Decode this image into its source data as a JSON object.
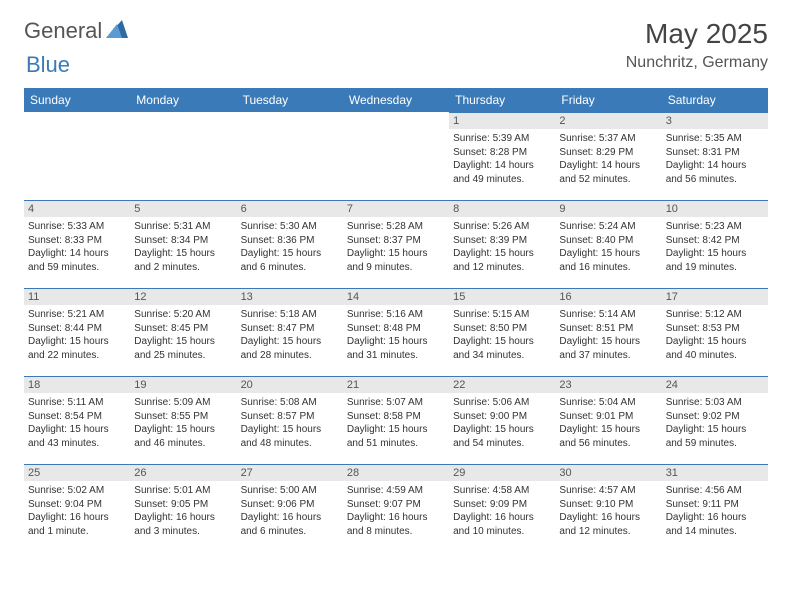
{
  "logo": {
    "word1": "General",
    "word2": "Blue"
  },
  "header": {
    "month": "May 2025",
    "location": "Nunchritz, Germany"
  },
  "colors": {
    "accent": "#3a7ab8",
    "daybar": "#e8e8e8",
    "text": "#333333",
    "bg": "#ffffff"
  },
  "typography": {
    "body_pt": 10,
    "header_pt": 28,
    "dayheader_pt": 12
  },
  "calendar": {
    "type": "table",
    "columns": [
      "Sunday",
      "Monday",
      "Tuesday",
      "Wednesday",
      "Thursday",
      "Friday",
      "Saturday"
    ],
    "weeks": [
      [
        null,
        null,
        null,
        null,
        {
          "n": "1",
          "sunrise": "Sunrise: 5:39 AM",
          "sunset": "Sunset: 8:28 PM",
          "daylight": "Daylight: 14 hours and 49 minutes."
        },
        {
          "n": "2",
          "sunrise": "Sunrise: 5:37 AM",
          "sunset": "Sunset: 8:29 PM",
          "daylight": "Daylight: 14 hours and 52 minutes."
        },
        {
          "n": "3",
          "sunrise": "Sunrise: 5:35 AM",
          "sunset": "Sunset: 8:31 PM",
          "daylight": "Daylight: 14 hours and 56 minutes."
        }
      ],
      [
        {
          "n": "4",
          "sunrise": "Sunrise: 5:33 AM",
          "sunset": "Sunset: 8:33 PM",
          "daylight": "Daylight: 14 hours and 59 minutes."
        },
        {
          "n": "5",
          "sunrise": "Sunrise: 5:31 AM",
          "sunset": "Sunset: 8:34 PM",
          "daylight": "Daylight: 15 hours and 2 minutes."
        },
        {
          "n": "6",
          "sunrise": "Sunrise: 5:30 AM",
          "sunset": "Sunset: 8:36 PM",
          "daylight": "Daylight: 15 hours and 6 minutes."
        },
        {
          "n": "7",
          "sunrise": "Sunrise: 5:28 AM",
          "sunset": "Sunset: 8:37 PM",
          "daylight": "Daylight: 15 hours and 9 minutes."
        },
        {
          "n": "8",
          "sunrise": "Sunrise: 5:26 AM",
          "sunset": "Sunset: 8:39 PM",
          "daylight": "Daylight: 15 hours and 12 minutes."
        },
        {
          "n": "9",
          "sunrise": "Sunrise: 5:24 AM",
          "sunset": "Sunset: 8:40 PM",
          "daylight": "Daylight: 15 hours and 16 minutes."
        },
        {
          "n": "10",
          "sunrise": "Sunrise: 5:23 AM",
          "sunset": "Sunset: 8:42 PM",
          "daylight": "Daylight: 15 hours and 19 minutes."
        }
      ],
      [
        {
          "n": "11",
          "sunrise": "Sunrise: 5:21 AM",
          "sunset": "Sunset: 8:44 PM",
          "daylight": "Daylight: 15 hours and 22 minutes."
        },
        {
          "n": "12",
          "sunrise": "Sunrise: 5:20 AM",
          "sunset": "Sunset: 8:45 PM",
          "daylight": "Daylight: 15 hours and 25 minutes."
        },
        {
          "n": "13",
          "sunrise": "Sunrise: 5:18 AM",
          "sunset": "Sunset: 8:47 PM",
          "daylight": "Daylight: 15 hours and 28 minutes."
        },
        {
          "n": "14",
          "sunrise": "Sunrise: 5:16 AM",
          "sunset": "Sunset: 8:48 PM",
          "daylight": "Daylight: 15 hours and 31 minutes."
        },
        {
          "n": "15",
          "sunrise": "Sunrise: 5:15 AM",
          "sunset": "Sunset: 8:50 PM",
          "daylight": "Daylight: 15 hours and 34 minutes."
        },
        {
          "n": "16",
          "sunrise": "Sunrise: 5:14 AM",
          "sunset": "Sunset: 8:51 PM",
          "daylight": "Daylight: 15 hours and 37 minutes."
        },
        {
          "n": "17",
          "sunrise": "Sunrise: 5:12 AM",
          "sunset": "Sunset: 8:53 PM",
          "daylight": "Daylight: 15 hours and 40 minutes."
        }
      ],
      [
        {
          "n": "18",
          "sunrise": "Sunrise: 5:11 AM",
          "sunset": "Sunset: 8:54 PM",
          "daylight": "Daylight: 15 hours and 43 minutes."
        },
        {
          "n": "19",
          "sunrise": "Sunrise: 5:09 AM",
          "sunset": "Sunset: 8:55 PM",
          "daylight": "Daylight: 15 hours and 46 minutes."
        },
        {
          "n": "20",
          "sunrise": "Sunrise: 5:08 AM",
          "sunset": "Sunset: 8:57 PM",
          "daylight": "Daylight: 15 hours and 48 minutes."
        },
        {
          "n": "21",
          "sunrise": "Sunrise: 5:07 AM",
          "sunset": "Sunset: 8:58 PM",
          "daylight": "Daylight: 15 hours and 51 minutes."
        },
        {
          "n": "22",
          "sunrise": "Sunrise: 5:06 AM",
          "sunset": "Sunset: 9:00 PM",
          "daylight": "Daylight: 15 hours and 54 minutes."
        },
        {
          "n": "23",
          "sunrise": "Sunrise: 5:04 AM",
          "sunset": "Sunset: 9:01 PM",
          "daylight": "Daylight: 15 hours and 56 minutes."
        },
        {
          "n": "24",
          "sunrise": "Sunrise: 5:03 AM",
          "sunset": "Sunset: 9:02 PM",
          "daylight": "Daylight: 15 hours and 59 minutes."
        }
      ],
      [
        {
          "n": "25",
          "sunrise": "Sunrise: 5:02 AM",
          "sunset": "Sunset: 9:04 PM",
          "daylight": "Daylight: 16 hours and 1 minute."
        },
        {
          "n": "26",
          "sunrise": "Sunrise: 5:01 AM",
          "sunset": "Sunset: 9:05 PM",
          "daylight": "Daylight: 16 hours and 3 minutes."
        },
        {
          "n": "27",
          "sunrise": "Sunrise: 5:00 AM",
          "sunset": "Sunset: 9:06 PM",
          "daylight": "Daylight: 16 hours and 6 minutes."
        },
        {
          "n": "28",
          "sunrise": "Sunrise: 4:59 AM",
          "sunset": "Sunset: 9:07 PM",
          "daylight": "Daylight: 16 hours and 8 minutes."
        },
        {
          "n": "29",
          "sunrise": "Sunrise: 4:58 AM",
          "sunset": "Sunset: 9:09 PM",
          "daylight": "Daylight: 16 hours and 10 minutes."
        },
        {
          "n": "30",
          "sunrise": "Sunrise: 4:57 AM",
          "sunset": "Sunset: 9:10 PM",
          "daylight": "Daylight: 16 hours and 12 minutes."
        },
        {
          "n": "31",
          "sunrise": "Sunrise: 4:56 AM",
          "sunset": "Sunset: 9:11 PM",
          "daylight": "Daylight: 16 hours and 14 minutes."
        }
      ]
    ]
  }
}
